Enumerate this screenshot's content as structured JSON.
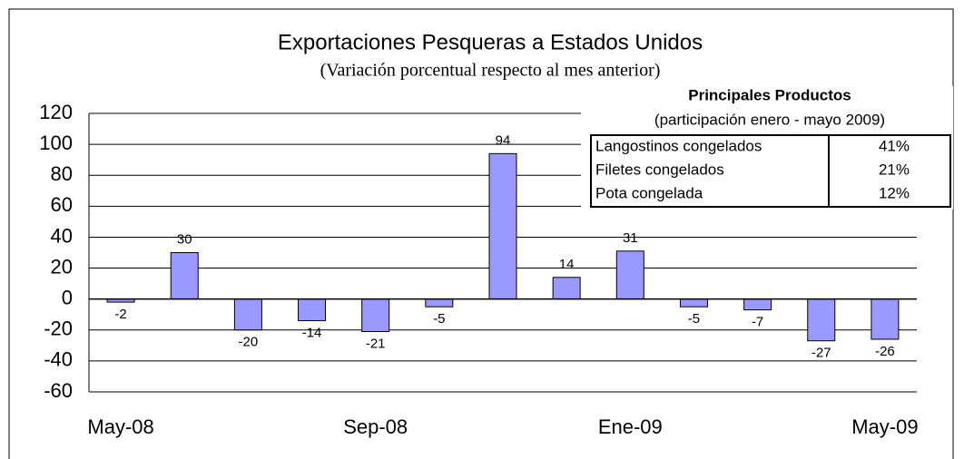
{
  "chart_data": {
    "type": "bar",
    "title": "Exportaciones Pesqueras a Estados Unidos",
    "subtitle": "(Variación porcentual respecto al mes anterior)",
    "categories": [
      "May-08",
      null,
      null,
      null,
      "Sep-08",
      null,
      null,
      null,
      "Ene-09",
      null,
      null,
      null,
      "May-09"
    ],
    "values": [
      -2,
      30,
      -20,
      -14,
      -21,
      -5,
      94,
      14,
      31,
      -5,
      -7,
      -27,
      -26
    ],
    "color": "#9999ff",
    "ylim": [
      -60,
      120
    ],
    "yticks": [
      -60,
      -40,
      -20,
      0,
      20,
      40,
      60,
      80,
      100,
      120
    ],
    "grid": true,
    "inset_table": {
      "title": "Principales Productos",
      "subtitle": "(participación enero - mayo 2009)",
      "rows": [
        [
          "Langostinos congelados",
          "41%"
        ],
        [
          "Filetes congelados",
          "21%"
        ],
        [
          "Pota congelada",
          "12%"
        ]
      ]
    }
  }
}
